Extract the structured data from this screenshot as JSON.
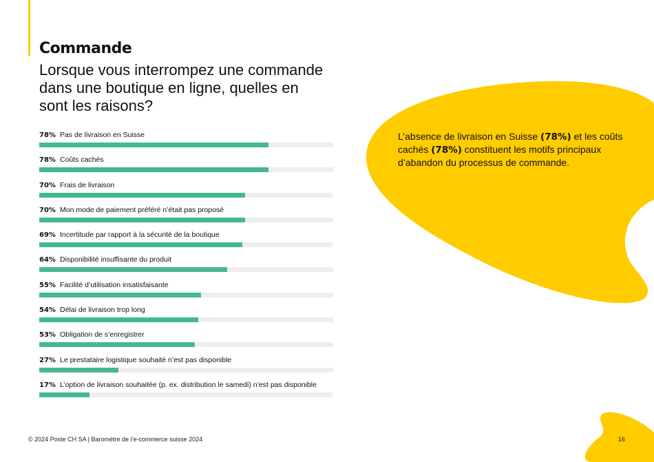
{
  "header": {
    "title": "Commande",
    "subtitle": "Lorsque vous interrompez une commande dans une boutique en ligne, quelles en sont les raisons?"
  },
  "colors": {
    "accent": "#ffcc00",
    "bar": "#46b98c",
    "track": "#eeeeee"
  },
  "chart_data": {
    "type": "bar",
    "orientation": "horizontal",
    "xlim": [
      0,
      100
    ],
    "unit": "%",
    "categories": [
      "Pas de livraison en Suisse",
      "Coûts cachés",
      "Frais de livraison",
      "Mon mode de paiement préféré n’était pas proposé",
      "Incertitude par rapport à la sécurité de la boutique",
      "Disponibilité insuffisante du produit",
      "Facilité d’utilisation insatisfaisante",
      "Délai de livraison trop long",
      "Obligation de s’enregistrer",
      "Le prestataire logistique souhaité n’est pas disponible",
      "L’option de livraison souhaitée (p. ex. distribution le samedi) n’est pas disponible"
    ],
    "values": [
      78,
      78,
      70,
      70,
      69,
      64,
      55,
      54,
      53,
      27,
      17
    ],
    "labels": [
      "78%",
      "78%",
      "70%",
      "70%",
      "69%",
      "64%",
      "55%",
      "54%",
      "53%",
      "27%",
      "17%"
    ]
  },
  "callout": {
    "part1": "L’absence de livraison en Suisse ",
    "bold1": "(78%)",
    "part2": " et les coûts cachés ",
    "bold2": "(78%)",
    "part3": " constituent les motifs principaux d’abandon du processus de commande."
  },
  "footer": {
    "text": "© 2024 Poste CH SA | Baromètre de l’e-commerce suisse 2024",
    "page": "16"
  }
}
